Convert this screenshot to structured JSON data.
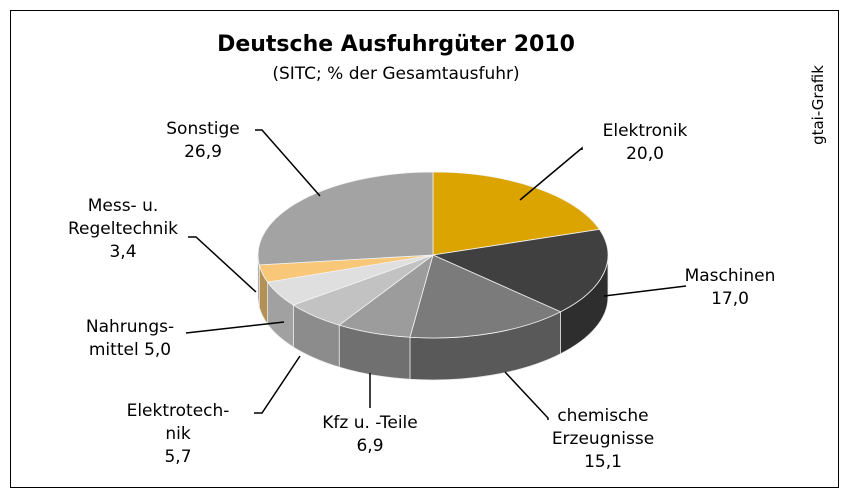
{
  "chart_data": {
    "type": "pie",
    "title": "Deutsche Ausfuhrgüter 2010",
    "subtitle": "(SITC; % der Gesamtausfuhr)",
    "source": "gtai-Grafik",
    "categories": [
      "Elektronik",
      "Maschinen",
      "chemische\nErzeugnisse",
      "Kfz u. -Teile",
      "Elektrotech-\nnik",
      "Nahrungs-\nmittel",
      "Mess- u.\nRegeltechnik",
      "Sonstige"
    ],
    "values": [
      20.0,
      17.0,
      15.1,
      6.9,
      5.7,
      5.0,
      3.4,
      26.9
    ],
    "value_labels": [
      "20,0",
      "17,0",
      "15,1",
      "6,9",
      "5,7",
      "5,0",
      "3,4",
      "26,9"
    ],
    "colors": [
      "#dba400",
      "#404040",
      "#7b7b7b",
      "#9c9c9c",
      "#c2c2c2",
      "#dfdfdf",
      "#f8c878",
      "#a3a3a3"
    ]
  }
}
